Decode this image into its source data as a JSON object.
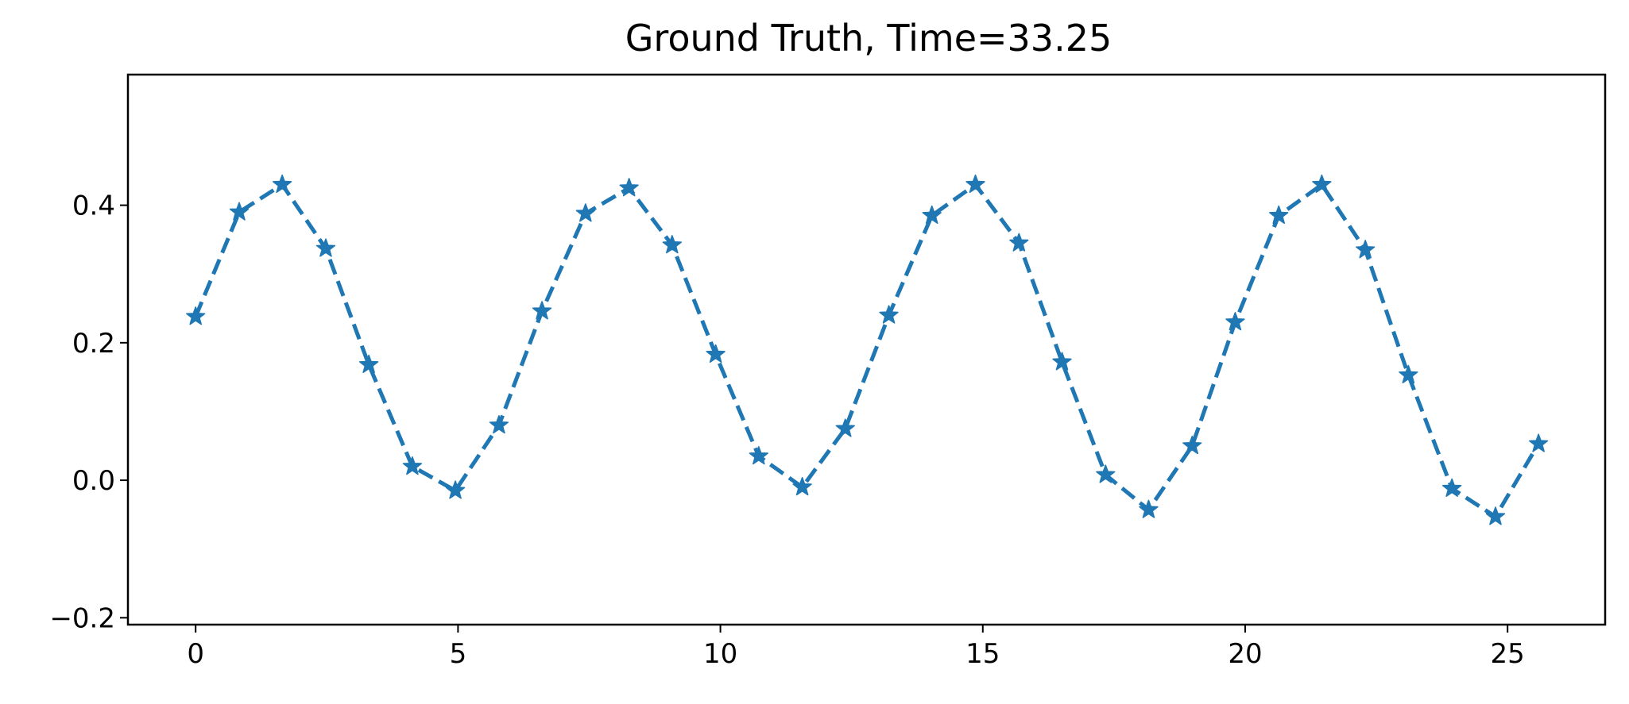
{
  "chart_data": {
    "type": "line",
    "title": "Ground Truth, Time=33.25",
    "xlabel": "",
    "ylabel": "",
    "xlim": [
      -1.29,
      26.86
    ],
    "ylim": [
      -0.21,
      0.59
    ],
    "xticks": [
      0,
      5,
      10,
      15,
      20,
      25
    ],
    "xtick_labels": [
      "0",
      "5",
      "10",
      "15",
      "20",
      "25"
    ],
    "yticks": [
      -0.2,
      0.0,
      0.2,
      0.4
    ],
    "ytick_labels": [
      "−0.2",
      "0.0",
      "0.2",
      "0.4"
    ],
    "grid": false,
    "series": [
      {
        "color": "#1f77b4",
        "line_style": "dashed",
        "marker": "star",
        "x": [
          0,
          0.83,
          1.65,
          2.48,
          3.3,
          4.13,
          4.95,
          5.78,
          6.6,
          7.43,
          8.26,
          9.08,
          9.91,
          10.73,
          11.56,
          12.38,
          13.21,
          14.03,
          14.86,
          15.69,
          16.51,
          17.34,
          18.16,
          18.99,
          19.81,
          20.64,
          21.46,
          22.29,
          23.11,
          23.94,
          24.77,
          25.59
        ],
        "y": [
          0.238,
          0.39,
          0.43,
          0.337,
          0.168,
          0.02,
          -0.015,
          0.08,
          0.246,
          0.388,
          0.425,
          0.342,
          0.183,
          0.035,
          -0.01,
          0.075,
          0.24,
          0.385,
          0.43,
          0.345,
          0.172,
          0.008,
          -0.043,
          0.05,
          0.23,
          0.385,
          0.43,
          0.335,
          0.153,
          -0.012,
          -0.053,
          0.053
        ]
      }
    ]
  }
}
